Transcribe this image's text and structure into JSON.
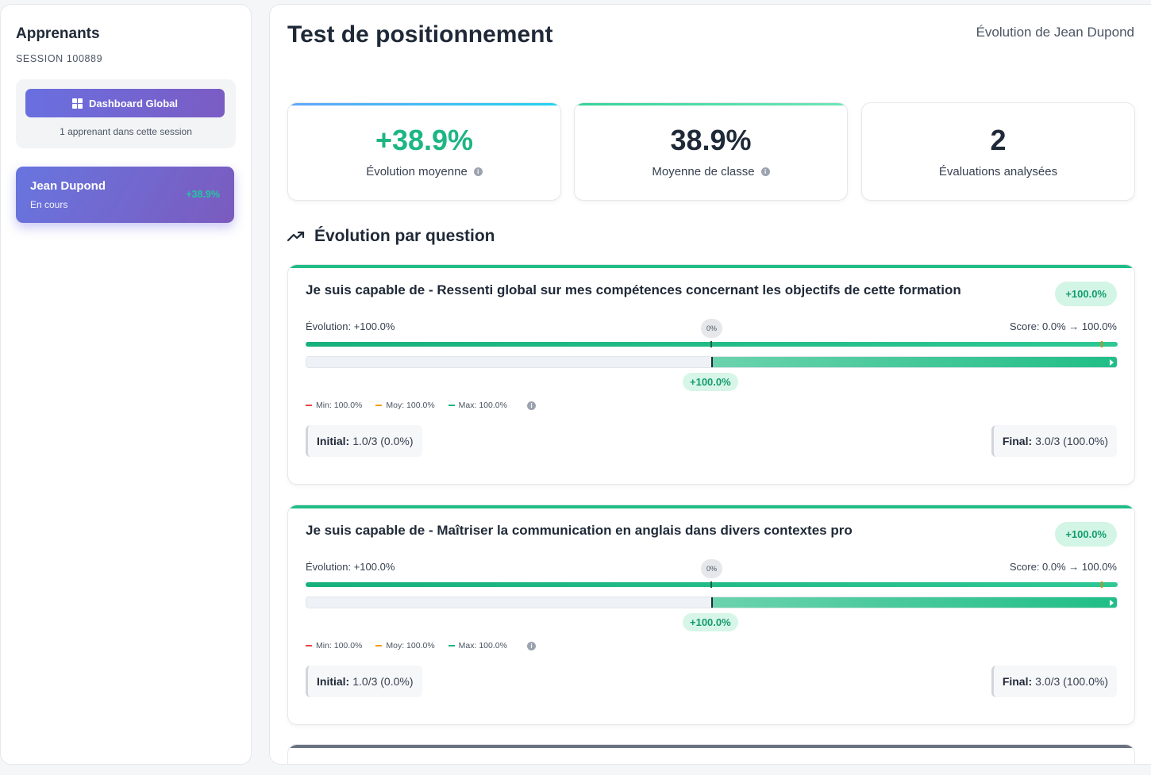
{
  "sidebar": {
    "title": "Apprenants",
    "session": "SESSION 100889",
    "dashboard_button": "Dashboard Global",
    "learner_count": "1 apprenant dans cette session",
    "learners": [
      {
        "name": "Jean Dupond",
        "status": "En cours",
        "score": "+38.9%"
      }
    ]
  },
  "header": {
    "title": "Test de positionnement",
    "subtitle": "Évolution de Jean Dupond"
  },
  "stats": [
    {
      "value": "+38.9%",
      "label": "Évolution moyenne",
      "accent": "#38bdf8"
    },
    {
      "value": "38.9%",
      "label": "Moyenne de classe",
      "accent": "#34d399"
    },
    {
      "value": "2",
      "label": "Évaluations analysées",
      "accent": "#e5e7eb"
    }
  ],
  "section": {
    "title": "Évolution par question",
    "icon": "trending-up-icon"
  },
  "questions": [
    {
      "title": "Je suis capable de - Ressenti global sur mes compétences concernant les objectifs de cette formation",
      "badge": "+100.0%",
      "evolution": "Évolution: +100.0%",
      "score": "Score: 0.0% → 100.0%",
      "zero_label": "0%",
      "delta": "+100.0%",
      "delta_fraction": 1.0,
      "legend": {
        "min": "Min: 100.0%",
        "avg": "Moy: 100.0%",
        "max": "Max: 100.0%"
      },
      "initial_label": "Initial:",
      "initial_value": "1.0/3 (0.0%)",
      "final_label": "Final:",
      "final_value": "3.0/3 (100.0%)"
    },
    {
      "title": "Je suis capable de - Maîtriser la communication en anglais dans divers contextes pro",
      "badge": "+100.0%",
      "evolution": "Évolution: +100.0%",
      "score": "Score: 0.0% → 100.0%",
      "zero_label": "0%",
      "delta": "+100.0%",
      "delta_fraction": 1.0,
      "legend": {
        "min": "Min: 100.0%",
        "avg": "Moy: 100.0%",
        "max": "Max: 100.0%"
      },
      "initial_label": "Initial:",
      "initial_value": "1.0/3 (0.0%)",
      "final_label": "Final:",
      "final_value": "3.0/3 (100.0%)"
    }
  ],
  "colors": {
    "min": "#ef4444",
    "avg": "#f59e0b",
    "max": "#10b981",
    "brand": "#6a6fe0",
    "positive": "#1db584"
  }
}
